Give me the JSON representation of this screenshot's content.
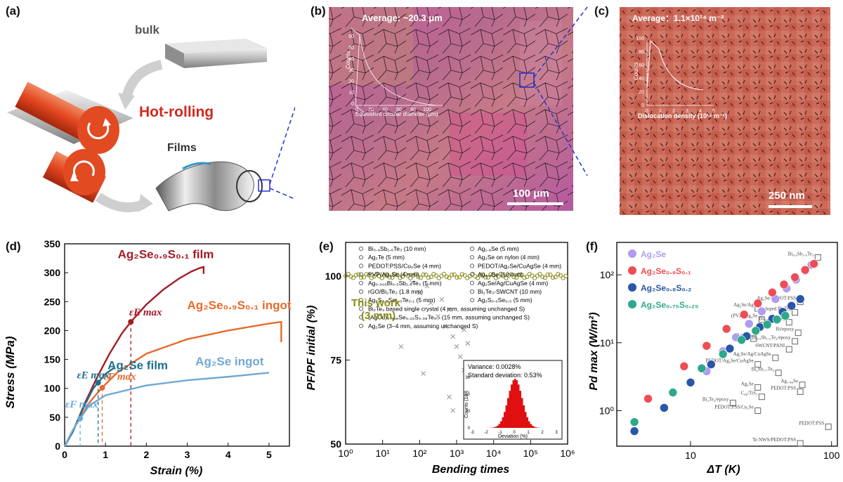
{
  "panel_labels": {
    "a": "(a)",
    "b": "(b)",
    "c": "(c)",
    "d": "(d)",
    "e": "(e)",
    "f": "(f)"
  },
  "colors": {
    "film": "#a31b24",
    "ingot_s": "#e8692a",
    "ag2se_film": "#1e6f8c",
    "ag2se_ingot": "#6fa8d6",
    "olive": "#8a8a1a",
    "hot_rolling": "#d1291f",
    "dash_blue": "#2233cc"
  },
  "panel_a": {
    "bulk": "bulk",
    "hot_rolling": "Hot-rolling",
    "films": "Films"
  },
  "panel_b": {
    "average": "Average: ~20.3 μm",
    "scale": "100 μm",
    "inset_ylabel": "Counts",
    "inset_xlabel": "Equivalent circular diameter (μm)",
    "inset_xticks": [
      "0",
      "20",
      "40",
      "60",
      "80",
      "100"
    ],
    "inset_yticks": [
      "0",
      "10",
      "20",
      "30",
      "40",
      "50",
      "60"
    ]
  },
  "panel_c": {
    "average": "Average：1.1×10¹⁴ m⁻²",
    "scale": "250 nm",
    "inset_ylabel": "Counts",
    "inset_xlabel": "Dislocation density (10¹⁴ m⁻²)",
    "inset_xticks": [
      "0",
      "1",
      "2",
      "3",
      "4",
      "5"
    ],
    "inset_yticks": [
      "0",
      "20",
      "40",
      "60",
      "80",
      "100"
    ]
  },
  "chart_data": [
    {
      "id": "d",
      "type": "line",
      "xlabel": "Strain (%)",
      "ylabel": "Stress (MPa)",
      "xlim": [
        0,
        5.5
      ],
      "ylim": [
        0,
        350
      ],
      "xticks": [
        "0",
        "1",
        "2",
        "3",
        "4",
        "5"
      ],
      "yticks": [
        "0",
        "50",
        "100",
        "150",
        "200",
        "250",
        "300",
        "350"
      ],
      "series": [
        {
          "name": "Ag₂Se₀.₉S₀.₁ film",
          "x": [
            0,
            0.2,
            0.5,
            0.8,
            1.1,
            1.4,
            1.62,
            2,
            2.4,
            2.8,
            3.1,
            3.3,
            3.4,
            3.4
          ],
          "y": [
            0,
            25,
            75,
            120,
            160,
            195,
            215,
            245,
            270,
            290,
            302,
            308,
            310,
            298
          ]
        },
        {
          "name": "Ag₂Se₀.₉S₀.₁ ingot",
          "x": [
            0,
            0.3,
            0.6,
            0.9,
            1.3,
            2,
            3,
            4,
            5,
            5.3,
            5.3
          ],
          "y": [
            0,
            40,
            75,
            100,
            128,
            160,
            185,
            200,
            212,
            215,
            180
          ]
        },
        {
          "name": "Ag₂Se film",
          "x": [
            0,
            0.2,
            0.45,
            0.7,
            0.82,
            1.0,
            1.2
          ],
          "y": [
            0,
            25,
            65,
            100,
            110,
            125,
            135
          ]
        },
        {
          "name": "Ag₂Se ingot",
          "x": [
            0,
            0.2,
            0.38,
            0.6,
            1,
            2,
            3,
            4,
            5
          ],
          "y": [
            0,
            28,
            48,
            70,
            88,
            105,
            114,
            120,
            127
          ]
        }
      ],
      "annotations": [
        {
          "text": "Ag₂Se₀.₉S₀.₁ film",
          "x": 1.3,
          "y": 325
        },
        {
          "text": "Ag₂Se₀.₉S₀.₁ ingot",
          "x": 3.0,
          "y": 237
        },
        {
          "text": "Ag₂Se film",
          "x": 1.05,
          "y": 133
        },
        {
          "text": "Ag₂Se ingot",
          "x": 3.2,
          "y": 140
        },
        {
          "text": "εE max",
          "x": 1.58,
          "y": 226
        },
        {
          "text": "εF max",
          "x": 0.95,
          "y": 115
        },
        {
          "text": "εE max",
          "x": 0.3,
          "y": 117
        },
        {
          "text": "εF max",
          "x": 0.02,
          "y": 67
        }
      ]
    },
    {
      "id": "e",
      "type": "scatter",
      "xlabel": "Bending times",
      "ylabel": "PF/PF initial (%)",
      "xscale": "log",
      "xlim": [
        1,
        1000000
      ],
      "ylim": [
        50,
        110
      ],
      "xticks": [
        "10⁰",
        "10¹",
        "10²",
        "10³",
        "10⁴",
        "10⁵",
        "10⁶"
      ],
      "yticks": [
        "50",
        "75",
        "100"
      ],
      "this_work": "This work\n(3 mm)",
      "legend_left": [
        "Bi₀.₄Sb₁.₆Te₃ (10 mm)",
        "Ag₂Te (5 mm)",
        "PEDOT:PSS/Cu₂Se (4 mm)",
        "PVP/Ag₂Se (4 mm)",
        "Ag₀.₀₀₅Bi₀.₅Sb₁.₅Te₃ (5 mm)",
        "rGO/Bi₂Te₃ (1.8 mm)",
        "Ag₂S₀.₅Se₀.₃Te₀.₁ (5 mm)",
        "Bi₂Te₃ based single crystal (4 mm, assuming unchanged S)",
        "(AgCu)₀.₉₉₈Se₀.₂₂S₀.₀₈Te₀.₇ (15 mm, assuming unchanged S)",
        "Ag₂Se (3–4 mm, assuming unchanged S)"
      ],
      "legend_right": [
        "Ag₁.₉Se (5 mm)",
        "Ag₂Se on nylon (4 mm)",
        "PEDOT/Ag₂Se/CuAgSe (4 mm)",
        "Ag₂.₃Se (10 mm)",
        "Ag₂Se/Ag/CuAgSe (4 mm)",
        "Bi₂Te₃-SWCNT (10 mm)",
        "Ag₂S₀.₅Se₀.₅ (5 mm)"
      ],
      "inset": {
        "variance": "Variance: 0.0028%",
        "std": "Standard deviation: 0.53%",
        "xlabel": "Deviation (%)",
        "ylabel": "Counts (10³)",
        "xticks": [
          "-3",
          "-2",
          "-1",
          "0",
          "1",
          "2",
          "3"
        ],
        "yticks": [
          "0",
          "10",
          "20",
          "30"
        ]
      }
    },
    {
      "id": "f",
      "type": "scatter",
      "xlabel": "ΔT (K)",
      "ylabel": "Pd max (W/m²)",
      "xscale": "log",
      "yscale": "log",
      "xlim": [
        3,
        110
      ],
      "ylim": [
        0.3,
        300
      ],
      "xticks": [
        "10",
        "100"
      ],
      "yticks": [
        "10⁰",
        "10¹",
        "10²"
      ],
      "series": [
        {
          "name": "Ag₂Se",
          "color": "#b09cf0",
          "x": [
            13,
            17,
            21,
            26,
            32,
            40,
            48,
            56,
            65,
            72
          ],
          "y": [
            3.8,
            7.5,
            12,
            19,
            29,
            44,
            63,
            85,
            115,
            140
          ]
        },
        {
          "name": "Ag₂Se₀.₉S₀.₁",
          "color": "#ee4d55",
          "x": [
            5,
            9,
            13,
            18,
            24,
            30,
            38,
            46,
            55,
            65,
            75
          ],
          "y": [
            1.5,
            4.5,
            9,
            16,
            26,
            38,
            55,
            72,
            92,
            118,
            145
          ]
        },
        {
          "name": "Ag₂Se₀.₈S₀.₂",
          "color": "#2a56a8",
          "x": [
            4,
            6.5,
            10,
            14,
            19,
            25,
            31,
            38,
            45,
            52,
            60
          ],
          "y": [
            0.5,
            1.1,
            2.6,
            4.8,
            8.2,
            12.5,
            17,
            22.5,
            28.5,
            35,
            44
          ]
        },
        {
          "name": "Ag₂Se₀.₇₅S₀.₂₅",
          "color": "#2ea88a",
          "x": [
            4,
            7.5,
            12,
            17,
            23,
            29,
            35,
            41,
            47
          ],
          "y": [
            0.68,
            1.85,
            4.2,
            6.8,
            11,
            15,
            18.5,
            22,
            25
          ]
        }
      ],
      "literature": [
        {
          "label": "Bi₀.₄Sb₁.₆Te₃",
          "x": 80,
          "y": 180
        },
        {
          "label": "Ag₂Se/Ag",
          "x": 30,
          "y": 32
        },
        {
          "label": "(PVP)/Ag₂Se",
          "x": 32,
          "y": 22
        },
        {
          "label": "Ag₂Se",
          "x": 28,
          "y": 11.5
        },
        {
          "label": "Ag₂Se/PEDOT:PSS",
          "x": 60,
          "y": 40
        },
        {
          "label": "Te doped Bi₂Te₃",
          "x": 55,
          "y": 28
        },
        {
          "label": "Bi₀.₅Sb₁.₅Te₃",
          "x": 50,
          "y": 20
        },
        {
          "label": "Bi/epoxy",
          "x": 58,
          "y": 14
        },
        {
          "label": "Bi₀.₅Sb₁.₅Te₃/epoxy",
          "x": 55,
          "y": 10.5
        },
        {
          "label": "SWCNT/PANI",
          "x": 50,
          "y": 8
        },
        {
          "label": "Ag₂Se/Ag/CuAgSe",
          "x": 40,
          "y": 6
        },
        {
          "label": "PEDOT/Ag₂Se/CuAgSe",
          "x": 30,
          "y": 4.8
        },
        {
          "label": "Bi₂Sb₁.₇Te₃",
          "x": 42,
          "y": 3.6
        },
        {
          "label": "Ag₁.₉₆Se",
          "x": 62,
          "y": 2.4
        },
        {
          "label": "Ag₂Se",
          "x": 30,
          "y": 2.2
        },
        {
          "label": "C₆₀/TiS₂",
          "x": 32,
          "y": 1.6
        },
        {
          "label": "Bi₂Te₃/epoxy",
          "x": 20,
          "y": 1.3
        },
        {
          "label": "PEDOT:PSS",
          "x": 60,
          "y": 1.9
        },
        {
          "label": "PEDOT:PSS/Cu₂Se",
          "x": 30,
          "y": 1.0
        },
        {
          "label": "PEDOT:PSS",
          "x": 95,
          "y": 0.58
        },
        {
          "label": "Te NWS/PEDOT:PSS",
          "x": 60,
          "y": 0.33
        }
      ]
    }
  ]
}
